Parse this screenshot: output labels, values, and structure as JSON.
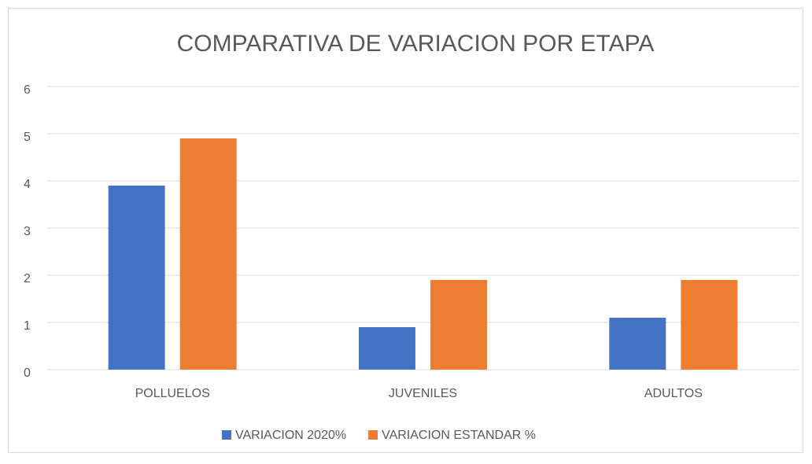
{
  "chart_data": {
    "type": "bar",
    "title": "COMPARATIVA DE VARIACION POR ETAPA",
    "categories": [
      "POLLUELOS",
      "JUVENILES",
      "ADULTOS"
    ],
    "series": [
      {
        "name": "VARIACION 2020%",
        "color": "#4472c4",
        "values": [
          3.9,
          0.9,
          1.1
        ]
      },
      {
        "name": "VARIACION ESTANDAR %",
        "color": "#ed7d31",
        "values": [
          4.9,
          1.9,
          1.9
        ]
      }
    ],
    "ylim": [
      0,
      6
    ],
    "yticks": [
      0,
      1,
      2,
      3,
      4,
      5,
      6
    ],
    "grid": true,
    "legend": "bottom"
  }
}
